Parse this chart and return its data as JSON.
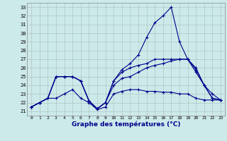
{
  "xlabel": "Graphe des températures (°C)",
  "background_color": "#cdeaea",
  "line_color": "#00008b",
  "xlim_min": -0.5,
  "xlim_max": 23.5,
  "ylim_min": 20.5,
  "ylim_max": 33.5,
  "yticks": [
    21,
    22,
    23,
    24,
    25,
    26,
    27,
    28,
    29,
    30,
    31,
    32,
    33
  ],
  "xticks": [
    0,
    1,
    2,
    3,
    4,
    5,
    6,
    7,
    8,
    9,
    10,
    11,
    12,
    13,
    14,
    15,
    16,
    17,
    18,
    19,
    20,
    21,
    22,
    23
  ],
  "lines": [
    {
      "x": [
        0,
        1,
        2,
        3,
        4,
        5,
        6,
        7,
        8,
        9,
        10,
        11,
        12,
        13,
        14,
        15,
        16,
        17,
        18,
        19,
        20,
        21,
        22,
        23
      ],
      "y": [
        21.5,
        22.0,
        22.5,
        22.5,
        23.0,
        23.5,
        22.5,
        22.0,
        21.2,
        21.5,
        23.0,
        23.3,
        23.5,
        23.5,
        23.3,
        23.3,
        23.2,
        23.2,
        23.0,
        23.0,
        22.5,
        22.3,
        22.3,
        22.3
      ]
    },
    {
      "x": [
        0,
        1,
        2,
        3,
        4,
        5,
        6,
        7,
        8,
        9,
        10,
        11,
        12,
        13,
        14,
        15,
        16,
        17,
        18,
        19,
        20,
        21,
        22,
        23
      ],
      "y": [
        21.5,
        22.0,
        22.5,
        25.0,
        25.0,
        25.0,
        24.5,
        22.2,
        21.3,
        22.0,
        24.0,
        24.8,
        25.0,
        25.5,
        26.0,
        26.3,
        26.5,
        26.8,
        27.0,
        27.0,
        25.5,
        24.0,
        22.5,
        22.3
      ]
    },
    {
      "x": [
        0,
        1,
        2,
        3,
        4,
        5,
        6,
        7,
        8,
        9,
        10,
        11,
        12,
        13,
        14,
        15,
        16,
        17,
        18,
        19,
        20,
        21,
        22,
        23
      ],
      "y": [
        21.5,
        22.0,
        22.5,
        25.0,
        25.0,
        25.0,
        24.5,
        22.2,
        21.3,
        22.0,
        24.5,
        25.5,
        26.0,
        26.3,
        26.5,
        27.0,
        27.0,
        27.0,
        27.0,
        27.0,
        25.8,
        24.0,
        22.5,
        22.3
      ]
    },
    {
      "x": [
        0,
        1,
        2,
        3,
        4,
        5,
        6,
        7,
        8,
        9,
        10,
        11,
        12,
        13,
        14,
        15,
        16,
        17,
        18,
        19,
        20,
        21,
        22,
        23
      ],
      "y": [
        21.5,
        22.0,
        22.5,
        25.0,
        25.0,
        25.0,
        24.5,
        22.2,
        21.3,
        22.0,
        24.5,
        25.8,
        26.5,
        27.5,
        29.5,
        31.2,
        32.0,
        33.0,
        29.0,
        27.0,
        26.0,
        24.0,
        23.0,
        22.3
      ]
    }
  ]
}
